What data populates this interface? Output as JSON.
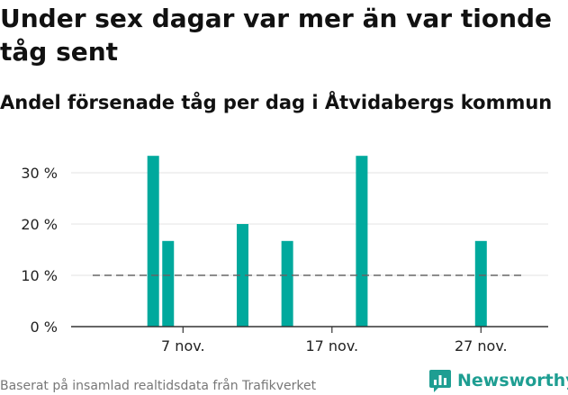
{
  "chart_data": {
    "type": "bar",
    "title": "Under sex dagar var mer än var tionde tåg sent",
    "subtitle": "Andel försenade tåg per dag i Åtvidabergs kommun",
    "x_ticks": [
      {
        "day": 7,
        "label": "7 nov."
      },
      {
        "day": 17,
        "label": "17 nov."
      },
      {
        "day": 27,
        "label": "27 nov."
      }
    ],
    "y_ticks": [
      {
        "value": 0,
        "label": "0 %"
      },
      {
        "value": 10,
        "label": "10 %"
      },
      {
        "value": 20,
        "label": "20 %"
      },
      {
        "value": 30,
        "label": "30 %"
      }
    ],
    "ylim": [
      0,
      36
    ],
    "xlim": [
      1,
      31
    ],
    "reference_line": 10,
    "bar_color": "#00a99d",
    "bars": [
      {
        "day": 5,
        "value": 33.3
      },
      {
        "day": 6,
        "value": 16.7
      },
      {
        "day": 11,
        "value": 20
      },
      {
        "day": 14,
        "value": 16.7
      },
      {
        "day": 19,
        "value": 33.3
      },
      {
        "day": 27,
        "value": 16.7
      }
    ]
  },
  "footer": {
    "source": "Baserat på insamlad realtidsdata från Trafikverket",
    "brand": "Newsworthy"
  },
  "colors": {
    "accent": "#1e9e92",
    "grid": "#e3e3e3",
    "axis": "#333333",
    "reference": "#666666"
  }
}
